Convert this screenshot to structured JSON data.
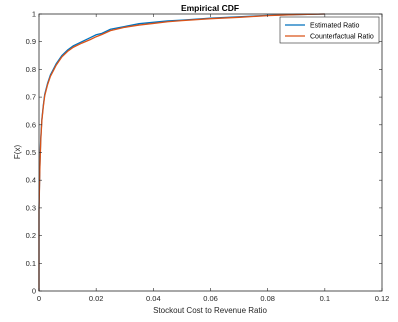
{
  "chart_data": {
    "type": "line",
    "title": "Empirical CDF",
    "xlabel": "Stockout Cost to Revenue Ratio",
    "ylabel": "F(x)",
    "xlim": [
      0,
      0.12
    ],
    "ylim": [
      0,
      1
    ],
    "x_ticks": [
      0,
      0.02,
      0.04,
      0.06,
      0.08,
      0.1,
      0.12
    ],
    "x_tick_labels": [
      "0",
      "0.02",
      "0.04",
      "0.06",
      "0.08",
      "0.1",
      "0.12"
    ],
    "y_ticks": [
      0,
      0.1,
      0.2,
      0.3,
      0.4,
      0.5,
      0.6,
      0.7,
      0.8,
      0.9,
      1
    ],
    "y_tick_labels": [
      "0",
      "0.1",
      "0.2",
      "0.3",
      "0.4",
      "0.5",
      "0.6",
      "0.7",
      "0.8",
      "0.9",
      "1"
    ],
    "grid": false,
    "legend_position": "top-right",
    "series": [
      {
        "name": "Estimated Ratio",
        "color": "#0072BD",
        "x": [
          0,
          0,
          0.0003,
          0.0006,
          0.001,
          0.0015,
          0.002,
          0.003,
          0.004,
          0.005,
          0.006,
          0.008,
          0.01,
          0.012,
          0.015,
          0.018,
          0.02,
          0.022,
          0.025,
          0.03,
          0.035,
          0.04,
          0.045,
          0.05,
          0.06,
          0.07,
          0.08,
          0.09,
          0.1
        ],
        "y": [
          0,
          0.3,
          0.45,
          0.55,
          0.62,
          0.67,
          0.71,
          0.75,
          0.78,
          0.8,
          0.82,
          0.85,
          0.87,
          0.885,
          0.9,
          0.915,
          0.925,
          0.93,
          0.945,
          0.955,
          0.965,
          0.97,
          0.975,
          0.978,
          0.985,
          0.99,
          0.995,
          0.998,
          1.0
        ]
      },
      {
        "name": "Counterfactual Ratio",
        "color": "#D95319",
        "x": [
          0,
          0,
          0.0003,
          0.0006,
          0.001,
          0.0015,
          0.002,
          0.003,
          0.004,
          0.005,
          0.006,
          0.008,
          0.01,
          0.012,
          0.015,
          0.018,
          0.02,
          0.022,
          0.025,
          0.03,
          0.035,
          0.04,
          0.045,
          0.05,
          0.06,
          0.07,
          0.08,
          0.09,
          0.1
        ],
        "y": [
          0,
          0.29,
          0.44,
          0.54,
          0.615,
          0.665,
          0.705,
          0.745,
          0.775,
          0.795,
          0.815,
          0.845,
          0.865,
          0.88,
          0.895,
          0.908,
          0.918,
          0.926,
          0.94,
          0.952,
          0.96,
          0.966,
          0.972,
          0.976,
          0.983,
          0.988,
          0.994,
          0.998,
          1.0
        ]
      }
    ]
  }
}
